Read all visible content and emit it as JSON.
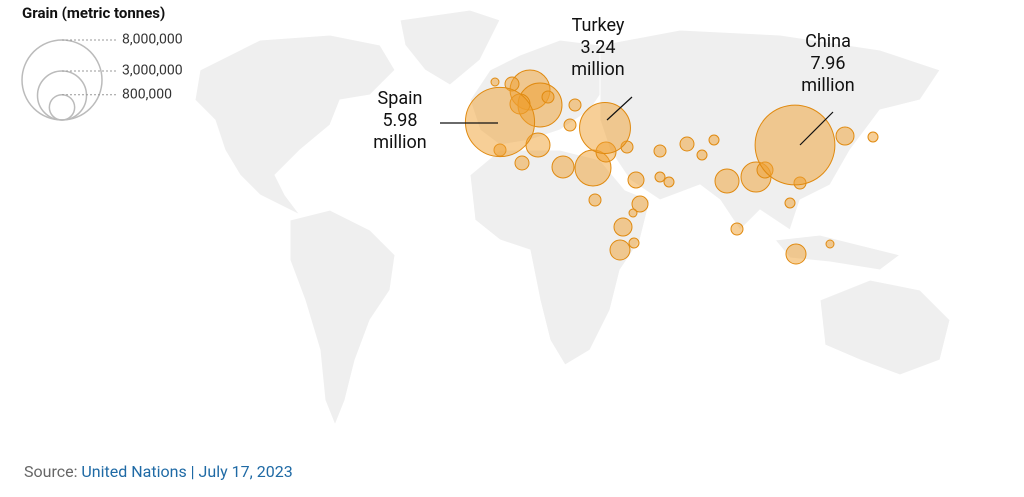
{
  "map": {
    "legend": {
      "title": "Grain (metric tonnes)",
      "sizes": [
        {
          "value": 8000000,
          "label": "8,000,000"
        },
        {
          "value": 3000000,
          "label": "3,000,000"
        },
        {
          "value": 800000,
          "label": "800,000"
        }
      ]
    },
    "points": [
      {
        "name": "Spain",
        "value": 5980000,
        "value_label": "5.98 million"
      },
      {
        "name": "Turkey",
        "value": 3240000,
        "value_label": "3.24 million"
      },
      {
        "name": "China",
        "value": 7960000,
        "value_label": "7.96 million"
      }
    ],
    "source": {
      "prefix": "Source:",
      "text": "United Nations | July 17, 2023"
    }
  }
}
